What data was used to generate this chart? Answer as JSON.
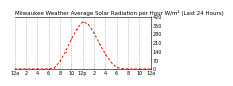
{
  "title": "Milwaukee Weather Average Solar Radiation per Hour W/m² (Last 24 Hours)",
  "hours": [
    0,
    1,
    2,
    3,
    4,
    5,
    6,
    7,
    8,
    9,
    10,
    11,
    12,
    13,
    14,
    15,
    16,
    17,
    18,
    19,
    20,
    21,
    22,
    23,
    24
  ],
  "values": [
    0,
    0,
    0,
    0,
    0,
    0,
    1,
    8,
    60,
    140,
    240,
    320,
    380,
    360,
    290,
    200,
    120,
    55,
    12,
    2,
    0,
    0,
    0,
    0,
    0
  ],
  "line_color": "#ff0000",
  "bg_color": "#ffffff",
  "grid_color": "#999999",
  "text_color": "#000000",
  "ylim": [
    0,
    420
  ],
  "yticks": [
    0,
    70,
    140,
    210,
    280,
    350,
    420
  ],
  "x_tick_positions": [
    0,
    2,
    4,
    6,
    8,
    10,
    12,
    14,
    16,
    18,
    20,
    22,
    24
  ],
  "x_tick_labels": [
    "12a",
    "2",
    "4",
    "6",
    "8",
    "10",
    "12p",
    "2",
    "4",
    "6",
    "8",
    "10",
    "12a"
  ],
  "title_fontsize": 4.0,
  "tick_fontsize": 3.5
}
